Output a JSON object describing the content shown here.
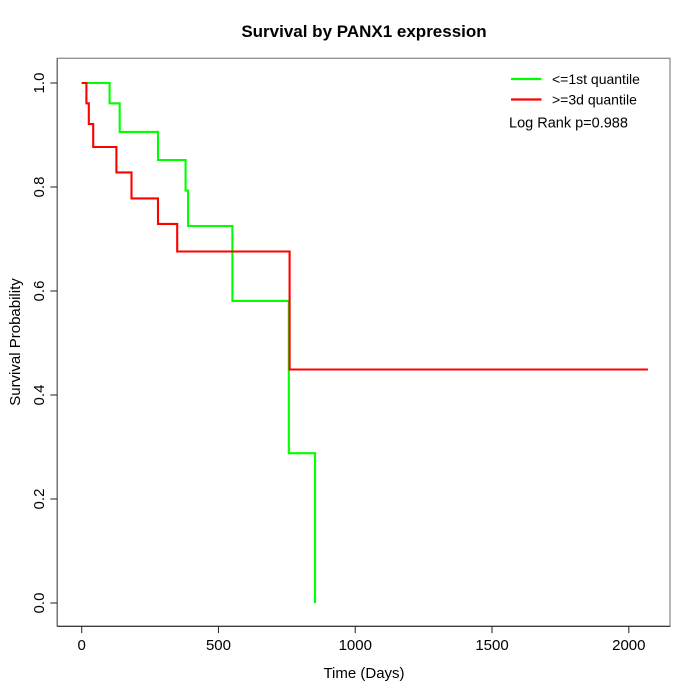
{
  "figure": {
    "background": "#ffffff",
    "box_color": "#8f8f8f",
    "axis_color": "#303030",
    "text_color": "#000000"
  },
  "chart_data": {
    "type": "line",
    "subtype": "kaplan_meier_step",
    "title": "Survival by PANX1 expression",
    "xlabel": "Time (Days)",
    "ylabel": "Survival Probability",
    "xlim": [
      0,
      2070
    ],
    "ylim": [
      0.0,
      1.0
    ],
    "grid": false,
    "legend_position": "top-right",
    "x_ticks": [
      0,
      500,
      1000,
      1500,
      2000
    ],
    "x_tick_labels": [
      "0",
      "500",
      "1000",
      "1500",
      "2000"
    ],
    "y_ticks": [
      0.0,
      0.2,
      0.4,
      0.6,
      0.8,
      1.0
    ],
    "y_tick_labels": [
      "0.0",
      "0.2",
      "0.4",
      "0.6",
      "0.8",
      "1.0"
    ],
    "annotation": "Log Rank p=0.988",
    "series": [
      {
        "name": "<=1st quantile",
        "color": "#00FF00",
        "step_points": [
          [
            0,
            1.0
          ],
          [
            102,
            1.0
          ],
          [
            102,
            0.961
          ],
          [
            139,
            0.961
          ],
          [
            139,
            0.906
          ],
          [
            279,
            0.906
          ],
          [
            279,
            0.852
          ],
          [
            380,
            0.852
          ],
          [
            380,
            0.793
          ],
          [
            389,
            0.793
          ],
          [
            389,
            0.725
          ],
          [
            551,
            0.725
          ],
          [
            551,
            0.581
          ],
          [
            757,
            0.581
          ],
          [
            757,
            0.288
          ],
          [
            853,
            0.288
          ],
          [
            853,
            0.0
          ]
        ]
      },
      {
        "name": ">=3d quantile",
        "color": "#FF0000",
        "step_points": [
          [
            0,
            1.0
          ],
          [
            17,
            1.0
          ],
          [
            17,
            0.961
          ],
          [
            26,
            0.961
          ],
          [
            26,
            0.921
          ],
          [
            42,
            0.921
          ],
          [
            42,
            0.877
          ],
          [
            127,
            0.877
          ],
          [
            127,
            0.828
          ],
          [
            182,
            0.828
          ],
          [
            182,
            0.778
          ],
          [
            279,
            0.778
          ],
          [
            279,
            0.729
          ],
          [
            349,
            0.729
          ],
          [
            349,
            0.676
          ],
          [
            760,
            0.676
          ],
          [
            760,
            0.449
          ],
          [
            2070,
            0.449
          ]
        ]
      }
    ]
  }
}
